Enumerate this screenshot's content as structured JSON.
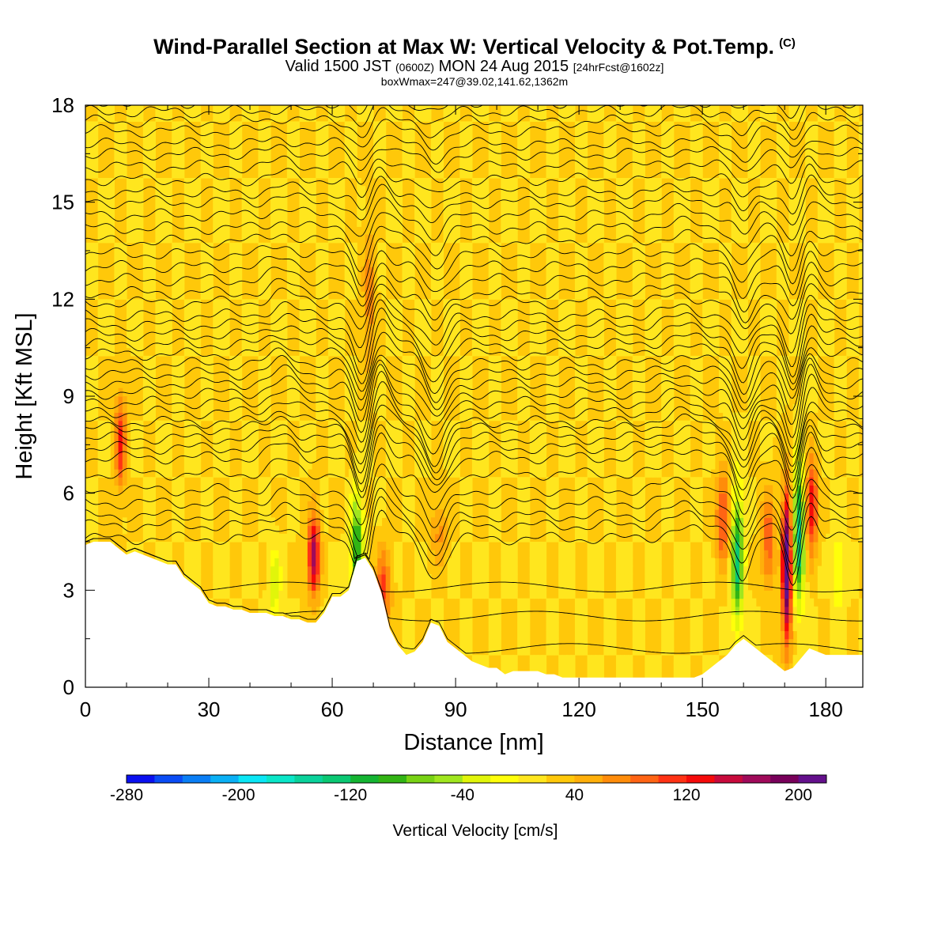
{
  "header": {
    "title": "Wind-Parallel Section at Max W: Vertical Velocity & Pot.Temp.",
    "title_tag": "(C)",
    "valid_prefix": "Valid 1500 JST",
    "valid_utc": "(0600Z)",
    "valid_date": "MON 24 Aug 2015",
    "fcst_tag": "[24hrFcst@1602z]",
    "boxline": "boxWmax=247@39.02,141.62,1362m"
  },
  "chart_data": {
    "type": "heatmap",
    "xlabel": "Distance [nm]",
    "ylabel": "Height [Kft MSL]",
    "xlim": [
      0,
      189
    ],
    "ylim": [
      0,
      18
    ],
    "x_ticks": [
      0,
      30,
      60,
      90,
      120,
      150,
      180
    ],
    "x_tick_labels": [
      "0",
      "30",
      "60",
      "90",
      "120",
      "150",
      "180"
    ],
    "y_ticks": [
      0,
      3,
      6,
      9,
      12,
      15,
      18
    ],
    "y_tick_labels": [
      "0",
      "3",
      "6",
      "9",
      "12",
      "15",
      "18"
    ],
    "background_value": 20,
    "terrain_top_kft": [
      [
        0,
        4.4
      ],
      [
        2,
        4.5
      ],
      [
        4,
        4.5
      ],
      [
        6,
        4.5
      ],
      [
        8,
        4.3
      ],
      [
        10,
        4.1
      ],
      [
        12,
        4.2
      ],
      [
        14,
        4.1
      ],
      [
        16,
        4.0
      ],
      [
        18,
        3.9
      ],
      [
        20,
        3.8
      ],
      [
        22,
        3.8
      ],
      [
        24,
        3.4
      ],
      [
        26,
        3.2
      ],
      [
        28,
        3.0
      ],
      [
        30,
        2.6
      ],
      [
        32,
        2.5
      ],
      [
        34,
        2.5
      ],
      [
        36,
        2.4
      ],
      [
        38,
        2.4
      ],
      [
        40,
        2.3
      ],
      [
        42,
        2.3
      ],
      [
        44,
        2.3
      ],
      [
        46,
        2.2
      ],
      [
        48,
        2.2
      ],
      [
        50,
        2.1
      ],
      [
        52,
        2.1
      ],
      [
        54,
        2.0
      ],
      [
        56,
        2.0
      ],
      [
        58,
        2.3
      ],
      [
        60,
        2.8
      ],
      [
        62,
        2.8
      ],
      [
        64,
        3.0
      ],
      [
        66,
        3.9
      ],
      [
        68,
        4.0
      ],
      [
        70,
        3.6
      ],
      [
        72,
        2.9
      ],
      [
        74,
        1.8
      ],
      [
        76,
        1.3
      ],
      [
        78,
        1.0
      ],
      [
        80,
        1.1
      ],
      [
        82,
        1.4
      ],
      [
        84,
        2.0
      ],
      [
        86,
        1.9
      ],
      [
        88,
        1.4
      ],
      [
        90,
        1.2
      ],
      [
        92,
        1.0
      ],
      [
        94,
        0.8
      ],
      [
        96,
        0.7
      ],
      [
        98,
        0.6
      ],
      [
        100,
        0.6
      ],
      [
        102,
        0.4
      ],
      [
        104,
        0.5
      ],
      [
        106,
        0.5
      ],
      [
        108,
        0.5
      ],
      [
        110,
        0.5
      ],
      [
        112,
        0.4
      ],
      [
        114,
        0.4
      ],
      [
        116,
        0.3
      ],
      [
        118,
        0.3
      ],
      [
        120,
        0.3
      ],
      [
        124,
        0.3
      ],
      [
        128,
        0.3
      ],
      [
        132,
        0.3
      ],
      [
        136,
        0.3
      ],
      [
        140,
        0.3
      ],
      [
        144,
        0.3
      ],
      [
        148,
        0.3
      ],
      [
        150,
        0.4
      ],
      [
        152,
        0.6
      ],
      [
        154,
        0.8
      ],
      [
        156,
        1.0
      ],
      [
        158,
        1.3
      ],
      [
        160,
        1.5
      ],
      [
        162,
        1.3
      ],
      [
        164,
        1.1
      ],
      [
        166,
        0.9
      ],
      [
        168,
        0.7
      ],
      [
        170,
        0.5
      ],
      [
        172,
        0.6
      ],
      [
        174,
        0.9
      ],
      [
        176,
        1.2
      ],
      [
        178,
        1.1
      ],
      [
        180,
        1.0
      ],
      [
        184,
        1.0
      ],
      [
        189,
        1.0
      ]
    ],
    "vertical_velocity_features": [
      {
        "x": 8.5,
        "z": 7.6,
        "sigma_x": 0.9,
        "sigma_z": 1.0,
        "w": 105
      },
      {
        "x": 55.5,
        "z": 4.1,
        "sigma_x": 1.0,
        "sigma_z": 0.9,
        "w": 150
      },
      {
        "x": 66,
        "z": 4.3,
        "sigma_x": 1.0,
        "sigma_z": 1.1,
        "w": -135
      },
      {
        "x": 72.5,
        "z": 3.0,
        "sigma_x": 1.2,
        "sigma_z": 0.9,
        "w": 85
      },
      {
        "x": 46,
        "z": 3.2,
        "sigma_x": 1.0,
        "sigma_z": 0.7,
        "w": -65
      },
      {
        "x": 158.5,
        "z": 4.0,
        "sigma_x": 1.0,
        "sigma_z": 1.4,
        "w": -150
      },
      {
        "x": 155,
        "z": 5.2,
        "sigma_x": 1.2,
        "sigma_z": 1.0,
        "w": 90
      },
      {
        "x": 170.5,
        "z": 3.7,
        "sigma_x": 0.8,
        "sigma_z": 1.6,
        "w": 220
      },
      {
        "x": 173.5,
        "z": 4.8,
        "sigma_x": 0.9,
        "sigma_z": 1.5,
        "w": -165
      },
      {
        "x": 176.5,
        "z": 5.6,
        "sigma_x": 1.0,
        "sigma_z": 1.0,
        "w": 120
      },
      {
        "x": 166,
        "z": 4.5,
        "sigma_x": 1.2,
        "sigma_z": 1.0,
        "w": 75
      },
      {
        "x": 183,
        "z": 3.6,
        "sigma_x": 1.0,
        "sigma_z": 0.8,
        "w": -45
      },
      {
        "x": 69,
        "z": 12.0,
        "sigma_x": 1.0,
        "sigma_z": 1.5,
        "w": 55
      },
      {
        "x": 86,
        "z": 4.8,
        "sigma_x": 1.4,
        "sigma_z": 0.7,
        "w": 45
      }
    ],
    "potential_temperature_isentropes": {
      "count": 40,
      "base_heights_kft": [
        4.6,
        5.0,
        5.3,
        5.7,
        6.1,
        6.6,
        7.1,
        7.4,
        7.7,
        8.0,
        8.2,
        8.5,
        8.8,
        9.1,
        9.4,
        9.7,
        10.0,
        10.3,
        10.6,
        10.9,
        11.2,
        11.5,
        11.9,
        12.2,
        12.6,
        13.0,
        13.4,
        13.8,
        14.2,
        14.6,
        15.0,
        15.3,
        15.7,
        16.1,
        16.5,
        16.8,
        17.2,
        17.5,
        17.8,
        18.1
      ],
      "wave_perturbations": [
        {
          "x": 67.5,
          "width": 2.0,
          "amp_kft": -1.6
        },
        {
          "x": 71,
          "width": 2.5,
          "amp_kft": 1.0
        },
        {
          "x": 85,
          "width": 2.5,
          "amp_kft": -1.2
        },
        {
          "x": 160,
          "width": 2.0,
          "amp_kft": -1.2
        },
        {
          "x": 172,
          "width": 1.8,
          "amp_kft": -1.4
        },
        {
          "x": 176,
          "width": 1.8,
          "amp_kft": 0.8
        },
        {
          "x": 48,
          "width": 3.0,
          "amp_kft": 0.4
        },
        {
          "x": 145,
          "width": 4.0,
          "amp_kft": 0.3
        }
      ]
    },
    "colorbar": {
      "title": "Vertical Velocity [cm/s]",
      "min": -280,
      "max": 220,
      "step": 20,
      "colors": [
        "#0a10f0",
        "#0a4cf5",
        "#0a7ef5",
        "#0ab0f5",
        "#0ae6f5",
        "#0ae6c8",
        "#0ad29b",
        "#0ac873",
        "#14b432",
        "#32b414",
        "#78d214",
        "#a0e61e",
        "#e1f50a",
        "#ffff0a",
        "#ffe61e",
        "#ffc80a",
        "#ffaf0a",
        "#ff8c0a",
        "#ff6414",
        "#ff3214",
        "#f50a0a",
        "#c80a3c",
        "#a00a5a",
        "#78005a",
        "#64108c"
      ],
      "tick_values": [
        -280,
        -200,
        -120,
        -40,
        40,
        120,
        200
      ],
      "tick_labels": [
        "-280",
        "-200",
        "-120",
        "-40",
        "40",
        "120",
        "200"
      ]
    }
  }
}
